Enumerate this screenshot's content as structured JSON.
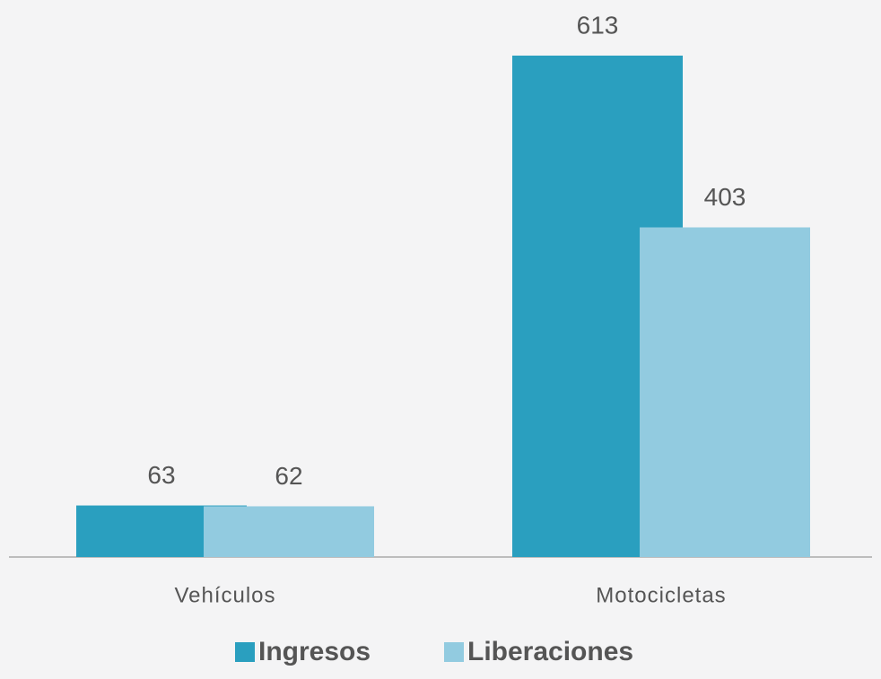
{
  "chart_data": {
    "type": "bar",
    "categories": [
      "Vehículos",
      "Motocicletas"
    ],
    "series": [
      {
        "name": "Ingresos",
        "color": "#2a9fbf",
        "values": [
          63,
          613
        ]
      },
      {
        "name": "Liberaciones",
        "color": "#92cbe0",
        "values": [
          62,
          403
        ]
      }
    ],
    "legend": "bottom"
  }
}
